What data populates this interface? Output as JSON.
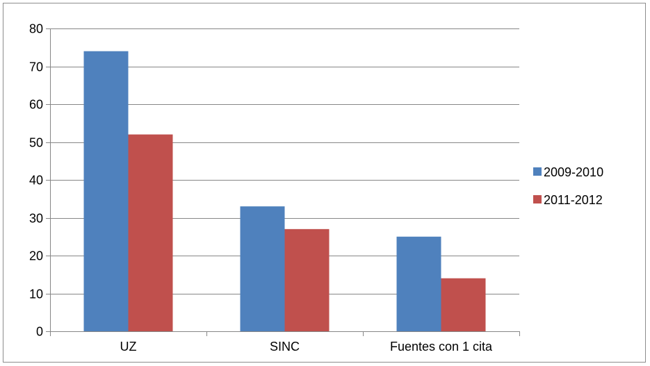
{
  "chart_data": {
    "type": "bar",
    "categories": [
      "UZ",
      "SINC",
      "Fuentes con 1 cita"
    ],
    "series": [
      {
        "name": "2009-2010",
        "values": [
          74,
          33,
          25
        ],
        "color": "#4f81bd"
      },
      {
        "name": "2011-2012",
        "values": [
          52,
          27,
          14
        ],
        "color": "#c0504d"
      }
    ],
    "ylim": [
      0,
      80
    ],
    "yticks": [
      0,
      10,
      20,
      30,
      40,
      50,
      60,
      70,
      80
    ],
    "grid": true,
    "grid_color": "#868686",
    "legend_position": "right",
    "title": "",
    "xlabel": "",
    "ylabel": ""
  }
}
